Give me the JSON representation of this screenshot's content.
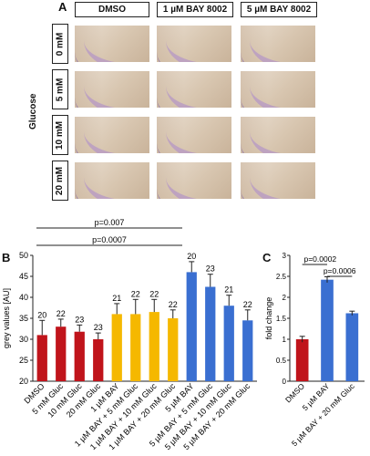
{
  "panels": {
    "a": "A",
    "b": "B",
    "c": "C"
  },
  "panel_a": {
    "columns": [
      "DMSO",
      "1 µM BAY 8002",
      "5 µM BAY 8002"
    ],
    "rows": [
      "0 mM",
      "5 mM",
      "10 mM",
      "20 mM"
    ],
    "row_group_label": "Glucose"
  },
  "chart_data": [
    {
      "type": "bar",
      "panel": "B",
      "ylabel": "grey values [AU]",
      "ylim": [
        20,
        50
      ],
      "yticks": [
        20,
        25,
        30,
        35,
        40,
        45,
        50
      ],
      "categories": [
        "DMSO",
        "5 mM Gluc",
        "10 mM Gluc",
        "20 mM Gluc",
        "1 µM BAY",
        "1 µM BAY + 5 mM Gluc",
        "1 µM BAY + 10 mM Gluc",
        "1 µM BAY + 20 mM Gluc",
        "5 µM BAY",
        "5 µM BAY + 5 mM Gluc",
        "5 µM BAY + 10 mM Gluc",
        "5 µM BAY + 20 mM Gluc"
      ],
      "values": [
        31.0,
        33.0,
        31.8,
        30.0,
        36.0,
        36.0,
        36.5,
        35.0,
        46.0,
        42.5,
        38.0,
        34.5
      ],
      "errors": [
        3.5,
        1.8,
        1.6,
        1.5,
        2.5,
        3.5,
        3.0,
        2.0,
        2.5,
        3.0,
        2.5,
        2.5
      ],
      "n_labels": [
        "20",
        "22",
        "23",
        "23",
        "21",
        "22",
        "22",
        "22",
        "20",
        "23",
        "21",
        "22"
      ],
      "colors": [
        "#c0141b",
        "#c0141b",
        "#c0141b",
        "#c0141b",
        "#f5b800",
        "#f5b800",
        "#f5b800",
        "#f5b800",
        "#3a6fd1",
        "#3a6fd1",
        "#3a6fd1",
        "#3a6fd1"
      ],
      "annotations": [
        "p=0.007",
        "p=0.0007"
      ],
      "grid": false
    },
    {
      "type": "bar",
      "panel": "C",
      "ylabel": "fold change",
      "ylim": [
        0,
        3
      ],
      "yticks": [
        "0",
        "0.5",
        "1",
        "1.5",
        "2",
        "2.5",
        "3"
      ],
      "categories": [
        "DMSO",
        "5 µM BAY",
        "5 µM BAY + 20 mM Gluc"
      ],
      "values": [
        1.0,
        2.42,
        1.62
      ],
      "errors": [
        0.07,
        0.07,
        0.05
      ],
      "colors": [
        "#c0141b",
        "#3a6fd1",
        "#3a6fd1"
      ],
      "annotations": [
        "p=0.0002",
        "p=0.0006"
      ],
      "grid": false
    }
  ]
}
